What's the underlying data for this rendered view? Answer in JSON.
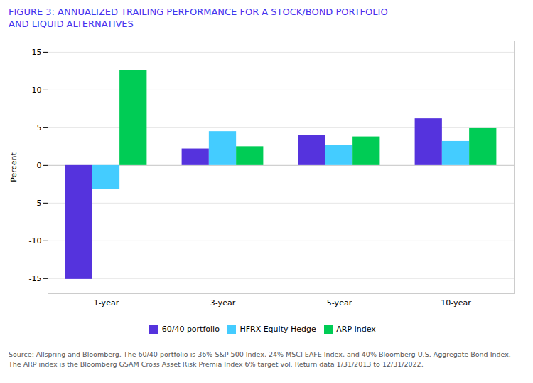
{
  "chart_data": {
    "type": "bar",
    "title": "FIGURE 3: ANNUALIZED TRAILING PERFORMANCE FOR A STOCK/BOND PORTFOLIO",
    "subtitle": "AND LIQUID ALTERNATIVES",
    "ylabel": "Percent",
    "categories": [
      "1-year",
      "3-year",
      "5-year",
      "10-year"
    ],
    "series": [
      {
        "name": "60/40 portfolio",
        "color": "#5533dd",
        "values": [
          -15.1,
          2.2,
          4.0,
          6.2
        ]
      },
      {
        "name": "HFRX Equity Hedge",
        "color": "#44ccff",
        "values": [
          -3.2,
          4.5,
          2.7,
          3.2
        ]
      },
      {
        "name": "ARP Index",
        "color": "#00cc55",
        "values": [
          12.6,
          2.5,
          3.8,
          4.9
        ]
      }
    ],
    "ylim": [
      -17,
      16.5
    ],
    "yticks": [
      -15,
      -10,
      -5,
      0,
      5,
      10,
      15
    ],
    "grid": true,
    "legend": "bottom",
    "caption": "Source: Allspring and Bloomberg. The 60/40 portfolio is 36% S&P 500 Index, 24% MSCI EAFE Index, and 40% Bloomberg U.S. Aggregate Bond Index.\nThe ARP index is the Bloomberg GSAM Cross Asset Risk Premia Index 6% target vol. Return data 1/31/2013 to 12/31/2022."
  }
}
